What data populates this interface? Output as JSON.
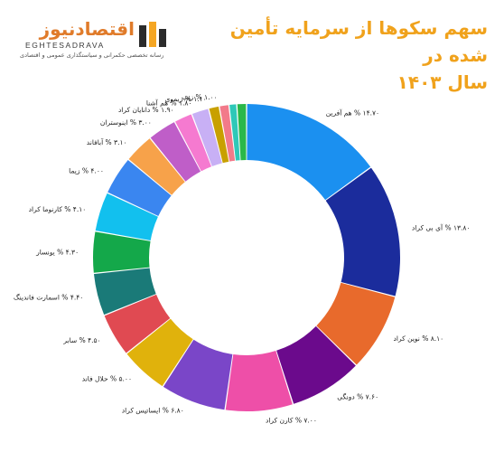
{
  "brand": {
    "name": "اقتصادنیوز",
    "latin": "EGHTESADRAVA",
    "tagline": "رسانه تخصصی حکمرانی و سیاستگذاری عمومی و اقتصادی",
    "colors": {
      "primary": "#e07b2a",
      "mark_dark": "#2b2b2b",
      "mark_accent": "#f5a623"
    }
  },
  "title_line1": "سهم سکوها از سرمایه تأمین شده در",
  "title_line2": "سال ۱۴۰۳",
  "title_color": "#f0a21c",
  "chart_data": {
    "type": "pie",
    "donut": true,
    "unit": "%",
    "slices": [
      {
        "label": "هم آفرین",
        "value": 14.7,
        "text": "۱۴.۷۰ % هم آفرین",
        "color": "#1b90f0"
      },
      {
        "label": "آی بی کراد",
        "value": 13.8,
        "text": "۱۳.۸۰ % آی بی کراد",
        "color": "#1b2c9c"
      },
      {
        "label": "نوین کراد",
        "value": 8.1,
        "text": "۸.۱۰ % نوین کراد",
        "color": "#e86a2c"
      },
      {
        "label": "دونگی",
        "value": 7.6,
        "text": "۷.۶۰ % دونگی",
        "color": "#6b0a8c"
      },
      {
        "label": "کارن کراد",
        "value": 7.0,
        "text": "۷.۰۰ % کارن کراد",
        "color": "#ee4fa8"
      },
      {
        "label": "ایساتیس کراد",
        "value": 6.8,
        "text": "۶.۸۰ % ایساتیس کراد",
        "color": "#7a46c8"
      },
      {
        "label": "حلال فاند",
        "value": 5.0,
        "text": "۵.۰۰ % حلال فاند",
        "color": "#e0b20c"
      },
      {
        "label": "سابر",
        "value": 4.5,
        "text": "۴.۵۰ % سابر",
        "color": "#e04a52"
      },
      {
        "label": "اسمارت فاندینگ",
        "value": 4.4,
        "text": "۴.۴۰ % اسمارت فاندینگ",
        "color": "#1a7a78"
      },
      {
        "label": "یونسار",
        "value": 4.3,
        "text": "۴.۳۰ % یونسار",
        "color": "#14a84a"
      },
      {
        "label": "کارنوما کراد",
        "value": 4.1,
        "text": "۴.۱۰ % کارنوما کراد",
        "color": "#12c0ee"
      },
      {
        "label": "زیما",
        "value": 4.0,
        "text": "۴.۰۰ % زیما",
        "color": "#3a86f0"
      },
      {
        "label": "آبافاند",
        "value": 3.1,
        "text": "۳.۱۰ % آبافاند",
        "color": "#f7a24a"
      },
      {
        "label": "اینوستران",
        "value": 3.0,
        "text": "۳.۰۰ % اینوستران",
        "color": "#bf5ec8"
      },
      {
        "label": "دانایان کراد",
        "value": 1.9,
        "text": "۱.۹۰ % دانایان کراد",
        "color": "#f57ad0"
      },
      {
        "label": "هم آشنا",
        "value": 1.8,
        "text": "۱.۸۰ % هم آشنا",
        "color": "#c8b0f5"
      },
      {
        "label": "زیموی",
        "value": 1.1,
        "text": "۱.۱۰ % زیموی",
        "color": "#c8a000"
      },
      {
        "label": "زیپ",
        "value": 1.0,
        "text": "۱.۰۰ % زیپ",
        "color": "#f27a8a"
      },
      {
        "label": "",
        "value": 0.8,
        "text": "",
        "color": "#2ec8b8"
      },
      {
        "label": "",
        "value": 1.0,
        "text": "",
        "color": "#2ab84a"
      }
    ]
  }
}
